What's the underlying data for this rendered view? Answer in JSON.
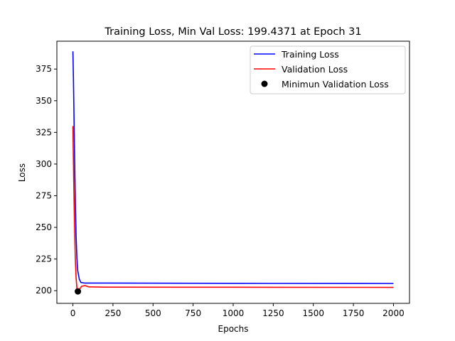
{
  "chart_data": {
    "type": "line",
    "title": "Training Loss, Min Val Loss: 199.4371 at Epoch 31",
    "xlabel": "Epochs",
    "ylabel": "Loss",
    "xlim": [
      -100,
      2100
    ],
    "ylim": [
      190,
      397
    ],
    "xticks": [
      0,
      250,
      500,
      750,
      1000,
      1250,
      1500,
      1750,
      2000
    ],
    "yticks": [
      200,
      225,
      250,
      275,
      300,
      325,
      350,
      375
    ],
    "grid": false,
    "legend_placement": "top-right",
    "series": [
      {
        "name": "Training Loss",
        "color": "#0000ff",
        "points": [
          [
            0,
            389
          ],
          [
            3,
            370
          ],
          [
            6,
            345
          ],
          [
            10,
            310
          ],
          [
            15,
            272
          ],
          [
            20,
            243
          ],
          [
            25,
            226
          ],
          [
            30,
            216
          ],
          [
            40,
            209
          ],
          [
            50,
            206.5
          ],
          [
            75,
            206
          ],
          [
            200,
            206
          ],
          [
            1000,
            205.8
          ],
          [
            2000,
            205.7
          ]
        ]
      },
      {
        "name": "Validation Loss",
        "color": "#ff0000",
        "points": [
          [
            0,
            330
          ],
          [
            3,
            305
          ],
          [
            6,
            280
          ],
          [
            10,
            252
          ],
          [
            15,
            225
          ],
          [
            20,
            210
          ],
          [
            25,
            202
          ],
          [
            31,
            199.4
          ],
          [
            40,
            201
          ],
          [
            55,
            203.5
          ],
          [
            75,
            204
          ],
          [
            100,
            203
          ],
          [
            200,
            202.8
          ],
          [
            1000,
            202.7
          ],
          [
            2000,
            202.6
          ]
        ]
      }
    ],
    "marker": {
      "name": "Minimun Validation Loss",
      "color": "#000000",
      "x": 31,
      "y": 199.4371
    }
  }
}
